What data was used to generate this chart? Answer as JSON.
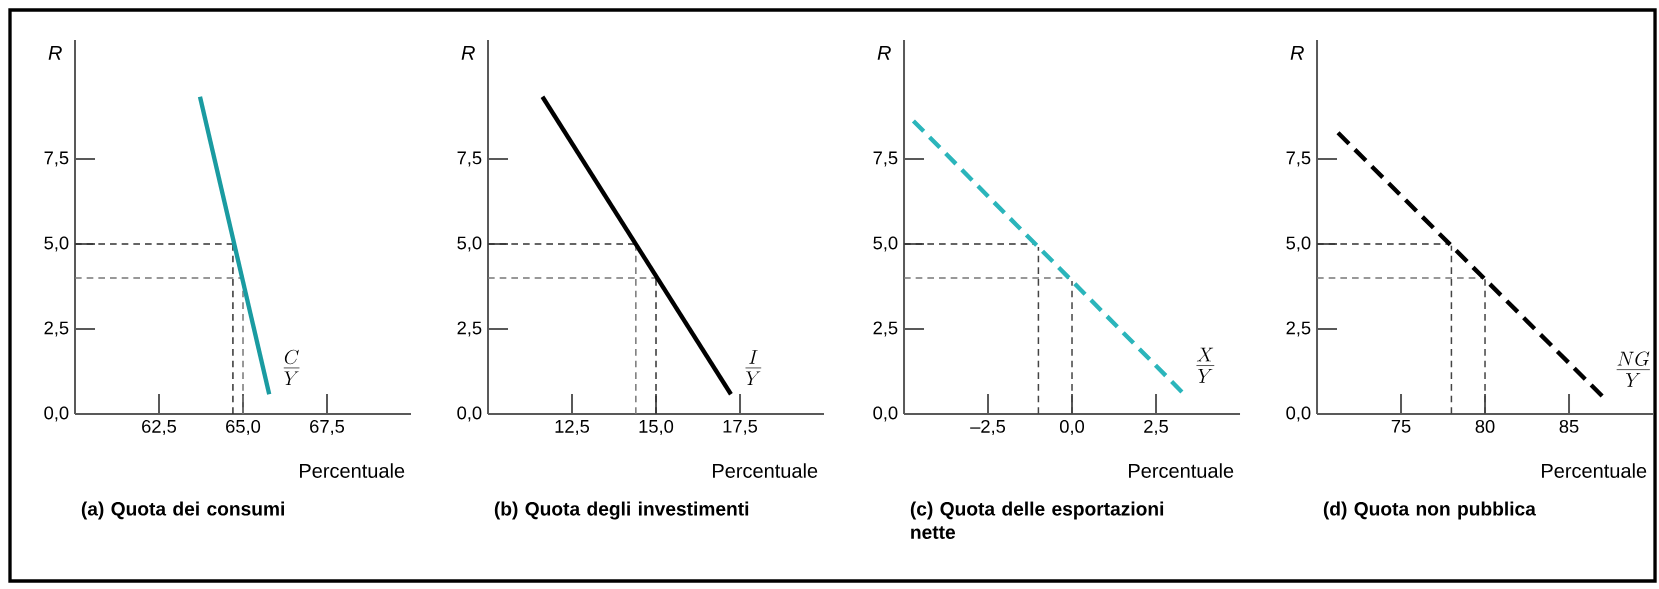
{
  "chart_data": [
    {
      "type": "line",
      "title": "(a) Quota dei consumi",
      "xlabel": "Percentuale",
      "ylabel": "R",
      "xlim": [
        60,
        70
      ],
      "ylim": [
        0,
        11
      ],
      "xticks": [
        {
          "value": 62.5,
          "label": "62,5"
        },
        {
          "value": 65,
          "label": "65,0"
        },
        {
          "value": 67.5,
          "label": "67,5"
        }
      ],
      "yticks": [
        {
          "value": 0,
          "label": "0,0"
        },
        {
          "value": 2.5,
          "label": "2,5"
        },
        {
          "value": 5,
          "label": "5,0"
        },
        {
          "value": 7.5,
          "label": "7,5"
        }
      ],
      "series": [
        {
          "name": "\\frac{C}{Y}",
          "color": "#1a9ba1",
          "line_style": "solid",
          "x": [
            63.72,
            65.78
          ],
          "values": [
            9.33,
            0.58
          ]
        }
      ],
      "ref_lines": [
        {
          "axis": "y",
          "value": 5,
          "color": "#333333",
          "line_style": "dashed"
        },
        {
          "axis": "y",
          "value": 4,
          "color": "#777777",
          "line_style": "dashed"
        },
        {
          "axis": "x",
          "value": 64.7,
          "color": "#333333",
          "line_style": "dashed"
        },
        {
          "axis": "x",
          "value": 65,
          "color": "#777777",
          "line_style": "dashed"
        }
      ]
    },
    {
      "type": "line",
      "title": "(b) Quota degli investimenti",
      "xlabel": "Percentuale",
      "ylabel": "R",
      "xlim": [
        10,
        20
      ],
      "ylim": [
        0,
        11
      ],
      "xticks": [
        {
          "value": 12.5,
          "label": "12,5"
        },
        {
          "value": 15,
          "label": "15,0"
        },
        {
          "value": 17.5,
          "label": "17,5"
        }
      ],
      "yticks": [
        {
          "value": 0,
          "label": "0,0"
        },
        {
          "value": 2.5,
          "label": "2,5"
        },
        {
          "value": 5,
          "label": "5,0"
        },
        {
          "value": 7.5,
          "label": "7,5"
        }
      ],
      "series": [
        {
          "name": "\\frac{I}{Y}",
          "color": "#000000",
          "line_style": "solid",
          "x": [
            11.62,
            17.23
          ],
          "values": [
            9.33,
            0.58
          ]
        }
      ],
      "ref_lines": [
        {
          "axis": "y",
          "value": 5,
          "color": "#333333",
          "line_style": "dashed"
        },
        {
          "axis": "y",
          "value": 4,
          "color": "#777777",
          "line_style": "dashed"
        },
        {
          "axis": "x",
          "value": 14.4,
          "color": "#777777",
          "line_style": "dashed"
        },
        {
          "axis": "x",
          "value": 15,
          "color": "#333333",
          "line_style": "dashed"
        }
      ]
    },
    {
      "type": "line",
      "title": "(c) Quota delle esportazioni nette",
      "xlabel": "Percentuale",
      "ylabel": "R",
      "xlim": [
        -5,
        5
      ],
      "ylim": [
        0,
        11
      ],
      "xticks": [
        {
          "value": -2.5,
          "label": "–2,5"
        },
        {
          "value": 0,
          "label": "0,0"
        },
        {
          "value": 2.5,
          "label": "2,5"
        }
      ],
      "yticks": [
        {
          "value": 0,
          "label": "0,0"
        },
        {
          "value": 2.5,
          "label": "2,5"
        },
        {
          "value": 5,
          "label": "5,0"
        },
        {
          "value": 7.5,
          "label": "7,5"
        }
      ],
      "series": [
        {
          "name": "\\frac{X}{Y}",
          "color": "#2bb5bb",
          "line_style": "dashed",
          "x": [
            -4.72,
            3.27
          ],
          "values": [
            8.62,
            0.65
          ]
        }
      ],
      "ref_lines": [
        {
          "axis": "y",
          "value": 5,
          "color": "#333333",
          "line_style": "dashed"
        },
        {
          "axis": "y",
          "value": 4,
          "color": "#777777",
          "line_style": "dashed"
        },
        {
          "axis": "x",
          "value": -1,
          "color": "#444444",
          "line_style": "dashed"
        },
        {
          "axis": "x",
          "value": 0,
          "color": "#444444",
          "line_style": "dashed"
        }
      ]
    },
    {
      "type": "line",
      "title": "(d) Quota non pubblica",
      "xlabel": "Percentuale",
      "ylabel": "R",
      "xlim": [
        70,
        90
      ],
      "ylim": [
        0,
        11
      ],
      "xticks": [
        75,
        80,
        85
      ],
      "yticks": [
        {
          "value": 0,
          "label": "0,0"
        },
        {
          "value": 2.5,
          "label": "2,5"
        },
        {
          "value": 5,
          "label": "5,0"
        },
        {
          "value": 7.5,
          "label": "7,5"
        }
      ],
      "series": [
        {
          "name": "\\frac{NG}{Y}",
          "color": "#000000",
          "line_style": "dashed",
          "x": [
            71.25,
            86.97
          ],
          "values": [
            8.27,
            0.53
          ]
        }
      ],
      "ref_lines": [
        {
          "axis": "y",
          "value": 5,
          "color": "#333333",
          "line_style": "dashed"
        },
        {
          "axis": "y",
          "value": 4,
          "color": "#777777",
          "line_style": "dashed"
        },
        {
          "axis": "x",
          "value": 78,
          "color": "#444444",
          "line_style": "dashed"
        },
        {
          "axis": "x",
          "value": 80,
          "color": "#444444",
          "line_style": "dashed"
        }
      ]
    }
  ]
}
